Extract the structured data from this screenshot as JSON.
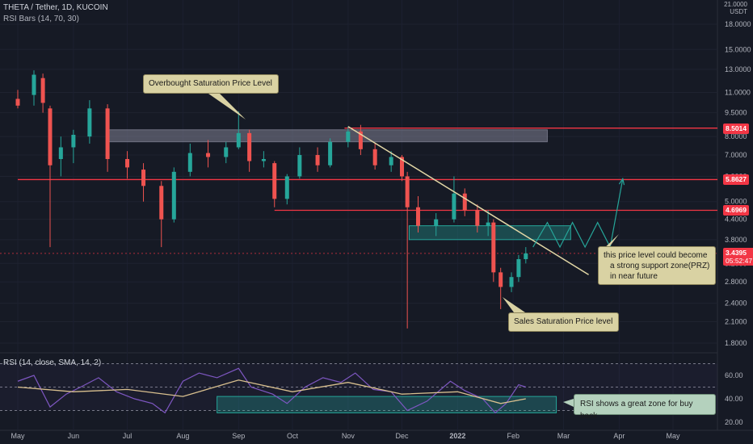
{
  "header": {
    "symbol_line": "THETA / Tether, 1D, KUCOIN",
    "indicator_line": "RSI Bars (14, 70, 30)",
    "rsi_line": "RSI (14, close, SMA, 14, 2)"
  },
  "axis_unit": {
    "top": "21.0000",
    "bottom": "USDT"
  },
  "annotations": {
    "overbought": "Overbought Saturation Price Level",
    "sales": "Sales Saturation Price level",
    "prz": [
      "this price level could become",
      "a strong support zone(PRZ)",
      "in near future"
    ],
    "rsi_zone": "RSI shows a great zone for buy back"
  },
  "price_tags": [
    {
      "value": "8.5014",
      "color": "#f23645"
    },
    {
      "value": "5.8627",
      "color": "#f23645"
    },
    {
      "value": "4.6969",
      "color": "#f23645"
    },
    {
      "value": "3.4395",
      "color": "#f23645"
    }
  ],
  "countdown": "05:52:47",
  "colors": {
    "up": "#26a69a",
    "down": "#ef5350",
    "resistance": "#f23645",
    "trend": "#e2d7a6",
    "projection": "#26a69a",
    "rsi": "#7e57c2",
    "rsi_ma": "#d9c08f"
  },
  "chart_data": [
    {
      "type": "candlestick",
      "title": "THETA / Tether, 1D, KUCOIN",
      "x_ticks": [
        "May",
        "Jun",
        "Jul",
        "Aug",
        "Sep",
        "Oct",
        "Nov",
        "Dec",
        "2022",
        "Feb",
        "Mar",
        "Apr",
        "May"
      ],
      "y_ticks": [
        "18.0000",
        "15.0000",
        "13.0000",
        "11.0000",
        "9.5000",
        "8.0000",
        "7.0000",
        "6.0000",
        "5.0000",
        "4.4000",
        "3.8000",
        "3.2000",
        "2.8000",
        "2.4000",
        "2.1000",
        "1.8000"
      ],
      "y_scale": "log",
      "ylim": [
        1.7,
        21
      ],
      "levels": [
        {
          "name": "8.5014",
          "value": 8.5014,
          "from": "2021-10-30"
        },
        {
          "name": "5.8627",
          "value": 5.8627,
          "from": "2021-05-01"
        },
        {
          "name": "4.6969",
          "value": 4.6969,
          "from": "2021-09-21"
        }
      ],
      "last_price": 3.4395,
      "zones": [
        {
          "from": "2021-06-20",
          "to": "2022-02-20",
          "low": 7.7,
          "high": 8.4,
          "color": "gray"
        },
        {
          "from": "2021-12-05",
          "to": "2022-03-05",
          "low": 3.8,
          "high": 4.2,
          "color": "green"
        }
      ],
      "trendline": [
        [
          "2021-11-01",
          8.6
        ],
        [
          "2022-03-15",
          2.95
        ]
      ],
      "projection": [
        [
          "2022-02-12",
          3.6
        ],
        [
          "2022-02-20",
          4.3
        ],
        [
          "2022-02-27",
          3.6
        ],
        [
          "2022-03-06",
          4.3
        ],
        [
          "2022-03-13",
          3.6
        ],
        [
          "2022-03-20",
          4.3
        ],
        [
          "2022-03-27",
          3.6
        ],
        [
          "2022-04-03",
          5.9
        ]
      ],
      "series": [
        {
          "x": "2021-05-01",
          "open": 10.5,
          "high": 11.2,
          "low": 9.8,
          "close": 10.0
        },
        {
          "x": "2021-05-10",
          "open": 10.8,
          "high": 12.9,
          "low": 10.0,
          "close": 12.5
        },
        {
          "x": "2021-05-15",
          "open": 12.2,
          "high": 12.6,
          "low": 9.5,
          "close": 10.2
        },
        {
          "x": "2021-05-19",
          "open": 9.8,
          "high": 10.0,
          "low": 3.6,
          "close": 6.5
        },
        {
          "x": "2021-05-25",
          "open": 6.8,
          "high": 8.0,
          "low": 6.0,
          "close": 7.4
        },
        {
          "x": "2021-06-01",
          "open": 7.4,
          "high": 8.4,
          "low": 6.6,
          "close": 8.1
        },
        {
          "x": "2021-06-10",
          "open": 8.0,
          "high": 10.4,
          "low": 7.6,
          "close": 9.8
        },
        {
          "x": "2021-06-20",
          "open": 9.8,
          "high": 10.1,
          "low": 6.2,
          "close": 6.8
        },
        {
          "x": "2021-07-01",
          "open": 6.8,
          "high": 7.2,
          "low": 5.9,
          "close": 6.4
        },
        {
          "x": "2021-07-10",
          "open": 6.3,
          "high": 6.6,
          "low": 5.0,
          "close": 5.6
        },
        {
          "x": "2021-07-20",
          "open": 5.6,
          "high": 5.8,
          "low": 3.6,
          "close": 4.4
        },
        {
          "x": "2021-07-27",
          "open": 4.4,
          "high": 6.4,
          "low": 4.3,
          "close": 6.2
        },
        {
          "x": "2021-08-05",
          "open": 6.2,
          "high": 7.6,
          "low": 6.0,
          "close": 7.1
        },
        {
          "x": "2021-08-15",
          "open": 7.1,
          "high": 7.8,
          "low": 6.4,
          "close": 6.9
        },
        {
          "x": "2021-08-25",
          "open": 6.9,
          "high": 7.7,
          "low": 6.6,
          "close": 7.4
        },
        {
          "x": "2021-09-01",
          "open": 7.4,
          "high": 9.6,
          "low": 7.3,
          "close": 8.2
        },
        {
          "x": "2021-09-07",
          "open": 8.2,
          "high": 8.4,
          "low": 6.2,
          "close": 6.7
        },
        {
          "x": "2021-09-15",
          "open": 6.7,
          "high": 7.2,
          "low": 6.4,
          "close": 6.8
        },
        {
          "x": "2021-09-21",
          "open": 6.6,
          "high": 6.7,
          "low": 4.8,
          "close": 5.1
        },
        {
          "x": "2021-09-28",
          "open": 5.1,
          "high": 6.1,
          "low": 4.9,
          "close": 6.0
        },
        {
          "x": "2021-10-05",
          "open": 6.0,
          "high": 7.4,
          "low": 5.9,
          "close": 7.0
        },
        {
          "x": "2021-10-15",
          "open": 7.0,
          "high": 7.4,
          "low": 6.2,
          "close": 6.5
        },
        {
          "x": "2021-10-22",
          "open": 6.5,
          "high": 7.9,
          "low": 6.4,
          "close": 7.7
        },
        {
          "x": "2021-11-01",
          "open": 7.7,
          "high": 8.6,
          "low": 7.4,
          "close": 8.3
        },
        {
          "x": "2021-11-08",
          "open": 8.3,
          "high": 8.7,
          "low": 7.0,
          "close": 7.3
        },
        {
          "x": "2021-11-16",
          "open": 7.3,
          "high": 7.6,
          "low": 6.3,
          "close": 6.5
        },
        {
          "x": "2021-11-25",
          "open": 6.5,
          "high": 7.2,
          "low": 6.2,
          "close": 6.9
        },
        {
          "x": "2021-12-01",
          "open": 6.9,
          "high": 7.0,
          "low": 5.8,
          "close": 6.0
        },
        {
          "x": "2021-12-04",
          "open": 6.0,
          "high": 6.2,
          "low": 2.0,
          "close": 4.8
        },
        {
          "x": "2021-12-10",
          "open": 4.8,
          "high": 5.2,
          "low": 4.0,
          "close": 4.2
        },
        {
          "x": "2021-12-20",
          "open": 4.2,
          "high": 4.6,
          "low": 3.9,
          "close": 4.4
        },
        {
          "x": "2021-12-30",
          "open": 4.4,
          "high": 6.0,
          "low": 4.3,
          "close": 5.3
        },
        {
          "x": "2022-01-05",
          "open": 5.3,
          "high": 5.5,
          "low": 4.5,
          "close": 4.7
        },
        {
          "x": "2022-01-12",
          "open": 4.7,
          "high": 4.9,
          "low": 4.0,
          "close": 4.2
        },
        {
          "x": "2022-01-18",
          "open": 4.2,
          "high": 4.7,
          "low": 3.9,
          "close": 4.3
        },
        {
          "x": "2022-01-21",
          "open": 4.3,
          "high": 4.4,
          "low": 2.8,
          "close": 3.0
        },
        {
          "x": "2022-01-25",
          "open": 3.0,
          "high": 3.1,
          "low": 2.3,
          "close": 2.7
        },
        {
          "x": "2022-01-31",
          "open": 2.7,
          "high": 3.0,
          "low": 2.6,
          "close": 2.9
        },
        {
          "x": "2022-02-04",
          "open": 2.9,
          "high": 3.4,
          "low": 2.8,
          "close": 3.3
        },
        {
          "x": "2022-02-08",
          "open": 3.3,
          "high": 3.6,
          "low": 3.2,
          "close": 3.44
        }
      ]
    },
    {
      "type": "line",
      "title": "RSI (14, close, SMA, 14, 2)",
      "y_ticks": [
        "60.00",
        "40.00",
        "20.00"
      ],
      "ylim": [
        18,
        72
      ],
      "bands": [
        70,
        50,
        30
      ],
      "buy_zone": {
        "from": "2021-08-20",
        "to": "2022-02-25",
        "low": 28,
        "high": 42
      },
      "series": [
        {
          "name": "RSI",
          "x": [
            "2021-05-01",
            "2021-05-10",
            "2021-05-19",
            "2021-05-28",
            "2021-06-05",
            "2021-06-15",
            "2021-06-25",
            "2021-07-05",
            "2021-07-15",
            "2021-07-22",
            "2021-08-01",
            "2021-08-10",
            "2021-08-20",
            "2021-09-01",
            "2021-09-08",
            "2021-09-20",
            "2021-09-28",
            "2021-10-08",
            "2021-10-18",
            "2021-10-28",
            "2021-11-05",
            "2021-11-15",
            "2021-11-25",
            "2021-12-04",
            "2021-12-15",
            "2021-12-28",
            "2022-01-05",
            "2022-01-15",
            "2022-01-22",
            "2022-01-28",
            "2022-02-04",
            "2022-02-08"
          ],
          "values": [
            55,
            60,
            33,
            44,
            50,
            58,
            46,
            40,
            36,
            28,
            55,
            62,
            58,
            66,
            50,
            44,
            36,
            50,
            58,
            54,
            62,
            48,
            46,
            30,
            38,
            55,
            47,
            40,
            28,
            36,
            52,
            50
          ]
        },
        {
          "name": "RSI-based MA",
          "x": [
            "2021-05-01",
            "2021-06-01",
            "2021-07-01",
            "2021-08-01",
            "2021-09-01",
            "2021-10-01",
            "2021-11-01",
            "2021-12-01",
            "2022-01-01",
            "2022-01-25",
            "2022-02-08"
          ],
          "values": [
            50,
            46,
            48,
            42,
            56,
            46,
            54,
            44,
            46,
            36,
            40
          ]
        }
      ]
    }
  ]
}
